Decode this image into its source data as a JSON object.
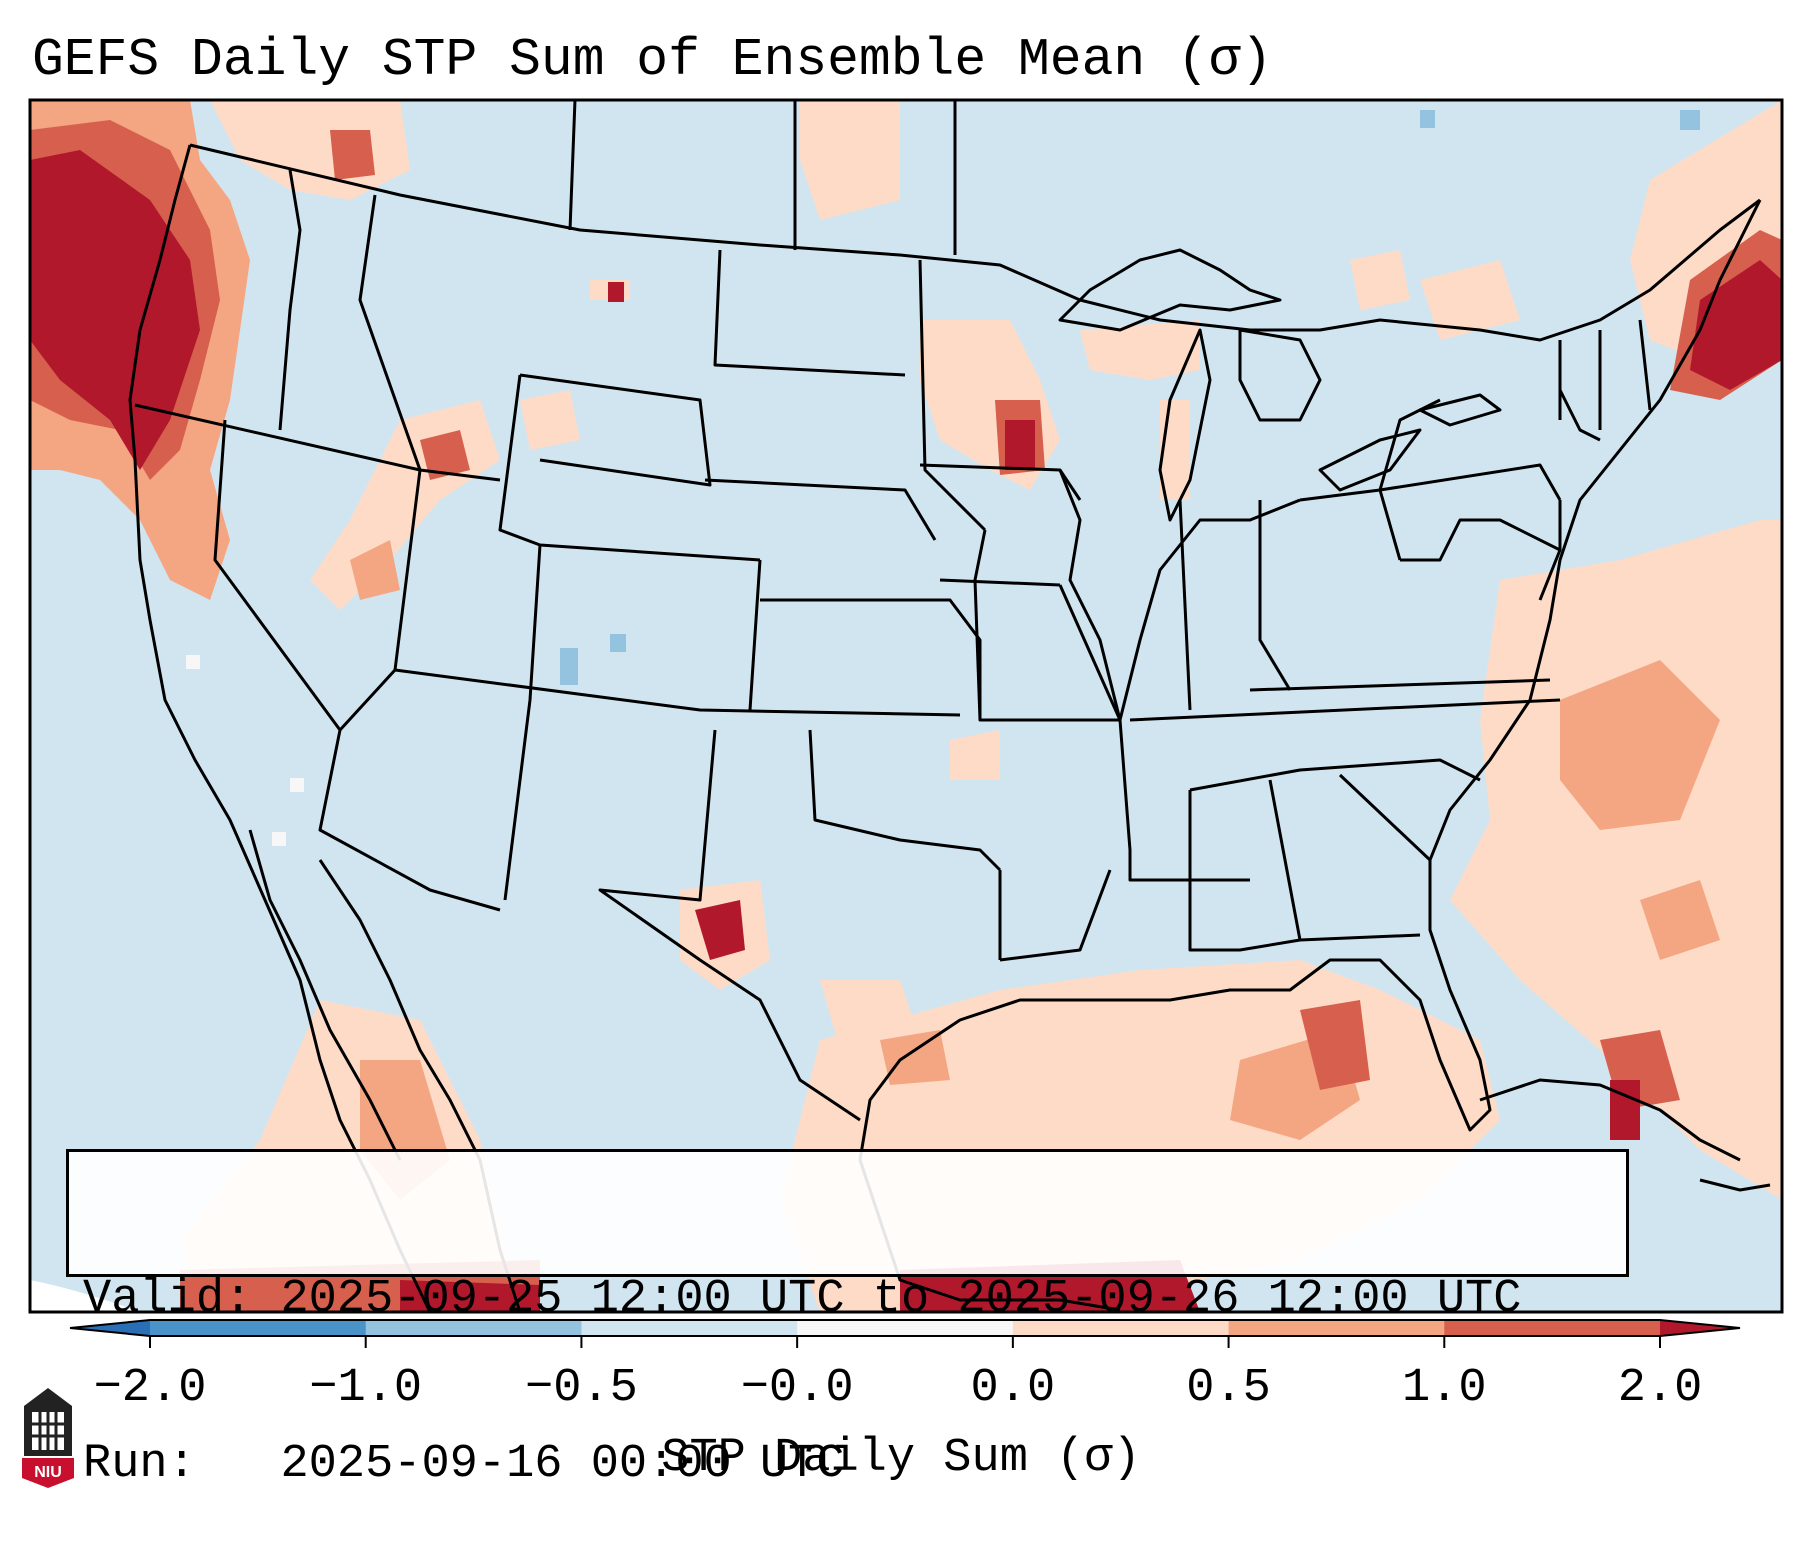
{
  "title": "GEFS Daily STP Sum of Ensemble Mean (σ)",
  "info": {
    "valid_label": "Valid:",
    "valid_value": "2025-09-25 12:00 UTC to 2025-09-26 12:00 UTC",
    "run_label": "Run:",
    "run_value": "2025-09-16 00:00 UTC"
  },
  "colorbar": {
    "label": "STP Daily Sum (σ)",
    "ticks": [
      "−2.0",
      "−1.0",
      "−0.5",
      "−0.0",
      "0.0",
      "0.5",
      "1.0",
      "2.0"
    ],
    "bins": [
      {
        "range": "<-2.0",
        "color": "#2a6fb5"
      },
      {
        "range": "-2.0 to -1.0",
        "color": "#4a93c8"
      },
      {
        "range": "-1.0 to -0.5",
        "color": "#93c3df"
      },
      {
        "range": "-0.5 to -0.0",
        "color": "#d1e5f0"
      },
      {
        "range": "-0.0 to 0.0",
        "color": "#f7f7f7"
      },
      {
        "range": "0.0 to 0.5",
        "color": "#fddbc7"
      },
      {
        "range": "0.5 to 1.0",
        "color": "#f4a582"
      },
      {
        "range": "1.0 to 2.0",
        "color": "#d6604d"
      },
      {
        "range": ">2.0",
        "color": "#b2182b"
      }
    ]
  },
  "map": {
    "background_bin": "-0.5 to -0.0",
    "regions": [
      {
        "name": "pacific-northwest",
        "level": "strong-positive"
      },
      {
        "name": "new-england",
        "level": "strong-positive"
      },
      {
        "name": "iowa-northeast",
        "level": "strong-positive"
      },
      {
        "name": "west-texas",
        "level": "strong-positive"
      },
      {
        "name": "gulf-of-mexico",
        "level": "moderate-positive"
      },
      {
        "name": "western-atlantic",
        "level": "weak-positive"
      }
    ]
  },
  "logo": {
    "text": "NIU"
  }
}
